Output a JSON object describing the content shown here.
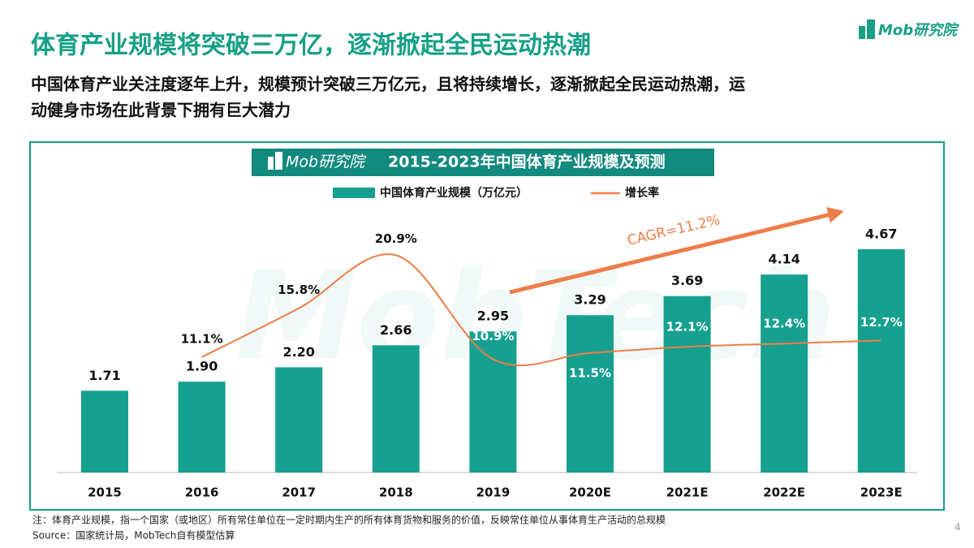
{
  "header": {
    "title": "体育产业规模将突破三万亿，逐渐掀起全民运动热潮",
    "subtitle": [
      "中国体育产业关注度逐年上升，规模预计突破三万亿元，且将持续增长，逐渐掀起全民运动热潮，运",
      "动健身市场在此背景下拥有巨大潜力"
    ],
    "logo": "Mob研究院"
  },
  "chart_data": {
    "type": "bar",
    "title": "2015-2023年中国体育产业规模及预测",
    "logo": "Mob研究院",
    "watermark": "MobTech",
    "categories": [
      "2015",
      "2016",
      "2017",
      "2018",
      "2019",
      "2020E",
      "2021E",
      "2022E",
      "2023E"
    ],
    "series": [
      {
        "name": "中国体育产业规模（万亿元）",
        "type": "bar",
        "color": "#16a08f",
        "values": [
          1.71,
          1.9,
          2.2,
          2.66,
          2.95,
          3.29,
          3.69,
          4.14,
          4.67
        ],
        "value_labels": [
          "1.71",
          "1.90",
          "2.20",
          "2.66",
          "2.95",
          "3.29",
          "3.69",
          "4.14",
          "4.67"
        ]
      },
      {
        "name": "增长率",
        "type": "line",
        "axis": "y2",
        "color": "#ef7d4a",
        "values": [
          null,
          11.1,
          15.8,
          20.9,
          10.9,
          11.5,
          12.1,
          12.4,
          12.7
        ],
        "value_labels": [
          null,
          "11.1%",
          "15.8%",
          "20.9%",
          "10.9%",
          "11.5%",
          "12.1%",
          "12.4%",
          "12.7%"
        ]
      }
    ],
    "ylim": [
      0,
      5
    ],
    "y2lim": [
      0,
      23
    ],
    "grid": false,
    "annotation": "CAGR=11.2%"
  },
  "footer": {
    "note": "注：体育产业规模，指一个国家（或地区）所有常住单位在一定时期内生产的所有体育货物和服务的价值，反映常住单位从事体育生产活动的总规模",
    "source": "Source：国家统计局，MobTech自有模型估算",
    "page": "4"
  }
}
